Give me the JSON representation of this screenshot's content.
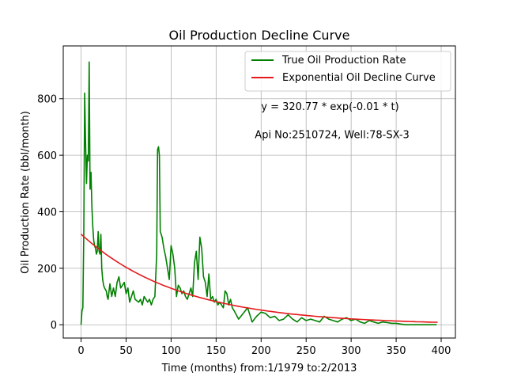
{
  "chart_data": {
    "type": "line",
    "title": "Oil Production Decline Curve",
    "xlabel": "Time (months) from:1/1979 to:2/2013",
    "ylabel": "Oil Production Rate (bbl/month)",
    "xlim": [
      -19.8,
      415.8
    ],
    "ylim": [
      -47,
      987
    ],
    "xticks": [
      0,
      50,
      100,
      150,
      200,
      250,
      300,
      350,
      400
    ],
    "yticks": [
      0,
      200,
      400,
      600,
      800
    ],
    "grid": true,
    "legend_placement": "top-right",
    "annotations": [
      {
        "text": "y = 320.77 * exp(-0.01 * t)",
        "x": 200,
        "y": 760
      },
      {
        "text": "Api No:2510724, Well:78-SX-3",
        "x": 193,
        "y": 660
      }
    ],
    "series": [
      {
        "name": "True Oil Production Rate",
        "color": "#008000",
        "x": [
          0,
          1,
          2,
          3,
          4,
          5,
          6,
          7,
          8,
          9,
          10,
          11,
          12,
          13,
          14,
          15,
          16,
          17,
          18,
          19,
          20,
          21,
          22,
          23,
          24,
          25,
          26,
          27,
          28,
          29,
          30,
          32,
          34,
          36,
          38,
          40,
          42,
          44,
          46,
          48,
          50,
          52,
          54,
          56,
          58,
          60,
          62,
          64,
          66,
          68,
          70,
          72,
          74,
          76,
          78,
          80,
          82,
          84,
          85,
          86,
          87,
          88,
          89,
          90,
          92,
          94,
          96,
          98,
          100,
          102,
          104,
          106,
          108,
          110,
          112,
          114,
          116,
          118,
          120,
          122,
          124,
          126,
          128,
          130,
          132,
          134,
          136,
          138,
          140,
          142,
          144,
          146,
          148,
          150,
          152,
          154,
          156,
          158,
          160,
          162,
          164,
          166,
          168,
          170,
          175,
          180,
          185,
          190,
          195,
          200,
          205,
          210,
          215,
          220,
          225,
          230,
          235,
          240,
          245,
          250,
          255,
          260,
          265,
          270,
          275,
          280,
          285,
          290,
          295,
          300,
          305,
          310,
          315,
          320,
          325,
          330,
          335,
          340,
          345,
          350,
          360,
          370,
          380,
          390,
          395
        ],
        "values": [
          0,
          50,
          60,
          330,
          820,
          650,
          500,
          600,
          580,
          930,
          480,
          540,
          420,
          350,
          300,
          280,
          270,
          250,
          260,
          330,
          260,
          250,
          320,
          200,
          160,
          140,
          130,
          125,
          120,
          100,
          90,
          145,
          100,
          130,
          100,
          150,
          170,
          130,
          140,
          150,
          110,
          130,
          80,
          100,
          120,
          90,
          85,
          80,
          90,
          70,
          100,
          90,
          80,
          90,
          70,
          90,
          100,
          250,
          620,
          630,
          600,
          330,
          320,
          310,
          270,
          240,
          200,
          160,
          280,
          250,
          200,
          100,
          140,
          130,
          110,
          120,
          100,
          90,
          110,
          130,
          100,
          220,
          260,
          160,
          310,
          270,
          170,
          150,
          100,
          180,
          90,
          100,
          80,
          90,
          70,
          80,
          70,
          60,
          120,
          110,
          70,
          90,
          60,
          50,
          20,
          40,
          60,
          10,
          30,
          45,
          40,
          25,
          30,
          15,
          20,
          35,
          20,
          10,
          25,
          15,
          20,
          15,
          10,
          30,
          20,
          15,
          10,
          20,
          25,
          15,
          20,
          10,
          5,
          15,
          10,
          5,
          10,
          8,
          5,
          5,
          0,
          0,
          0,
          0,
          0
        ]
      },
      {
        "name": "Exponential Oil Decline Curve",
        "color": "#e41a1c",
        "a": 320.77,
        "b": 0.0091,
        "x_range": [
          0,
          396
        ]
      }
    ]
  }
}
